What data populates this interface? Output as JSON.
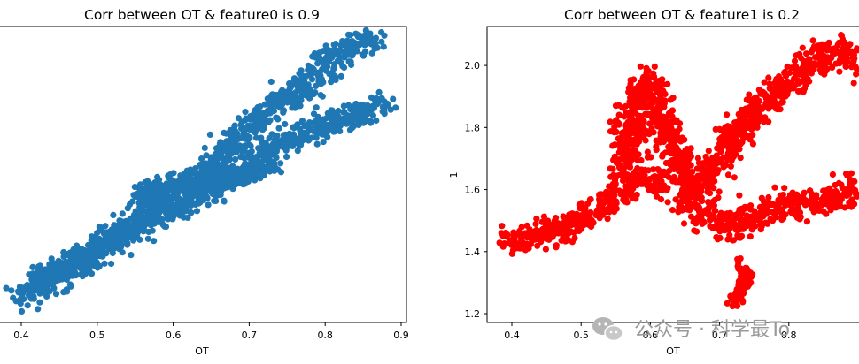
{
  "chart_data": [
    {
      "type": "scatter",
      "title": "Corr between OT & feature0 is 0.9",
      "xlabel": "OT",
      "ylabel": "",
      "xlim": [
        0.37,
        0.91
      ],
      "ylim": [
        1.17,
        2.15
      ],
      "xticks": [
        "0.4",
        "0.5",
        "0.6",
        "0.7",
        "0.8",
        "0.9"
      ],
      "color": "#1f77b4",
      "grid": false,
      "series": [
        {
          "path": [
            [
              0.4,
              1.25
            ],
            [
              0.43,
              1.3
            ],
            [
              0.47,
              1.36
            ],
            [
              0.52,
              1.43
            ],
            [
              0.56,
              1.52
            ],
            [
              0.58,
              1.58
            ],
            [
              0.62,
              1.62
            ],
            [
              0.66,
              1.7
            ],
            [
              0.7,
              1.8
            ],
            [
              0.74,
              1.88
            ],
            [
              0.78,
              1.95
            ],
            [
              0.81,
              2.02
            ],
            [
              0.85,
              2.08
            ],
            [
              0.87,
              2.1
            ]
          ],
          "spread": 0.045
        },
        {
          "path": [
            [
              0.42,
              1.3
            ],
            [
              0.48,
              1.38
            ],
            [
              0.55,
              1.48
            ],
            [
              0.62,
              1.56
            ],
            [
              0.68,
              1.63
            ],
            [
              0.72,
              1.72
            ],
            [
              0.77,
              1.78
            ],
            [
              0.82,
              1.82
            ],
            [
              0.87,
              1.86
            ],
            [
              0.88,
              1.87
            ]
          ],
          "spread": 0.035
        },
        {
          "path": [
            [
              0.55,
              1.58
            ],
            [
              0.6,
              1.61
            ],
            [
              0.65,
              1.63
            ],
            [
              0.7,
              1.66
            ],
            [
              0.73,
              1.68
            ]
          ],
          "spread": 0.03
        }
      ]
    },
    {
      "type": "scatter",
      "title": "Corr  between OT & feature1 is 0.2",
      "xlabel": "OT",
      "ylabel": "1",
      "xlim": [
        0.37,
        0.91
      ],
      "ylim": [
        1.17,
        2.15
      ],
      "xticks": [
        "0.4",
        "0.5",
        "0.6",
        "0.7",
        "0.8"
      ],
      "yticks": [
        "1.2",
        "1.4",
        "1.6",
        "1.8",
        "2.0"
      ],
      "color": "#ff0000",
      "grid": false,
      "series": [
        {
          "path": [
            [
              0.39,
              1.44
            ],
            [
              0.42,
              1.44
            ],
            [
              0.45,
              1.46
            ],
            [
              0.48,
              1.48
            ],
            [
              0.51,
              1.52
            ],
            [
              0.54,
              1.56
            ],
            [
              0.57,
              1.6
            ],
            [
              0.6,
              1.64
            ],
            [
              0.62,
              1.62
            ]
          ],
          "spread": 0.04
        },
        {
          "path": [
            [
              0.56,
              1.65
            ],
            [
              0.57,
              1.75
            ],
            [
              0.58,
              1.9
            ],
            [
              0.6,
              1.95
            ],
            [
              0.62,
              1.8
            ],
            [
              0.64,
              1.7
            ],
            [
              0.66,
              1.6
            ],
            [
              0.7,
              1.7
            ],
            [
              0.73,
              1.8
            ],
            [
              0.76,
              1.88
            ],
            [
              0.8,
              1.95
            ],
            [
              0.84,
              2.02
            ],
            [
              0.88,
              2.05
            ],
            [
              0.9,
              2.0
            ]
          ],
          "spread": 0.045
        },
        {
          "path": [
            [
              0.64,
              1.56
            ],
            [
              0.68,
              1.52
            ],
            [
              0.72,
              1.48
            ],
            [
              0.76,
              1.52
            ],
            [
              0.8,
              1.55
            ],
            [
              0.84,
              1.56
            ],
            [
              0.87,
              1.58
            ],
            [
              0.9,
              1.6
            ],
            [
              0.93,
              1.64
            ]
          ],
          "spread": 0.045
        },
        {
          "path": [
            [
              0.72,
              1.23
            ],
            [
              0.73,
              1.28
            ],
            [
              0.74,
              1.32
            ],
            [
              0.73,
              1.36
            ]
          ],
          "spread": 0.02
        }
      ]
    }
  ],
  "watermark": {
    "text": "公众号 · 科学最To",
    "icon": "wechat-icon"
  }
}
